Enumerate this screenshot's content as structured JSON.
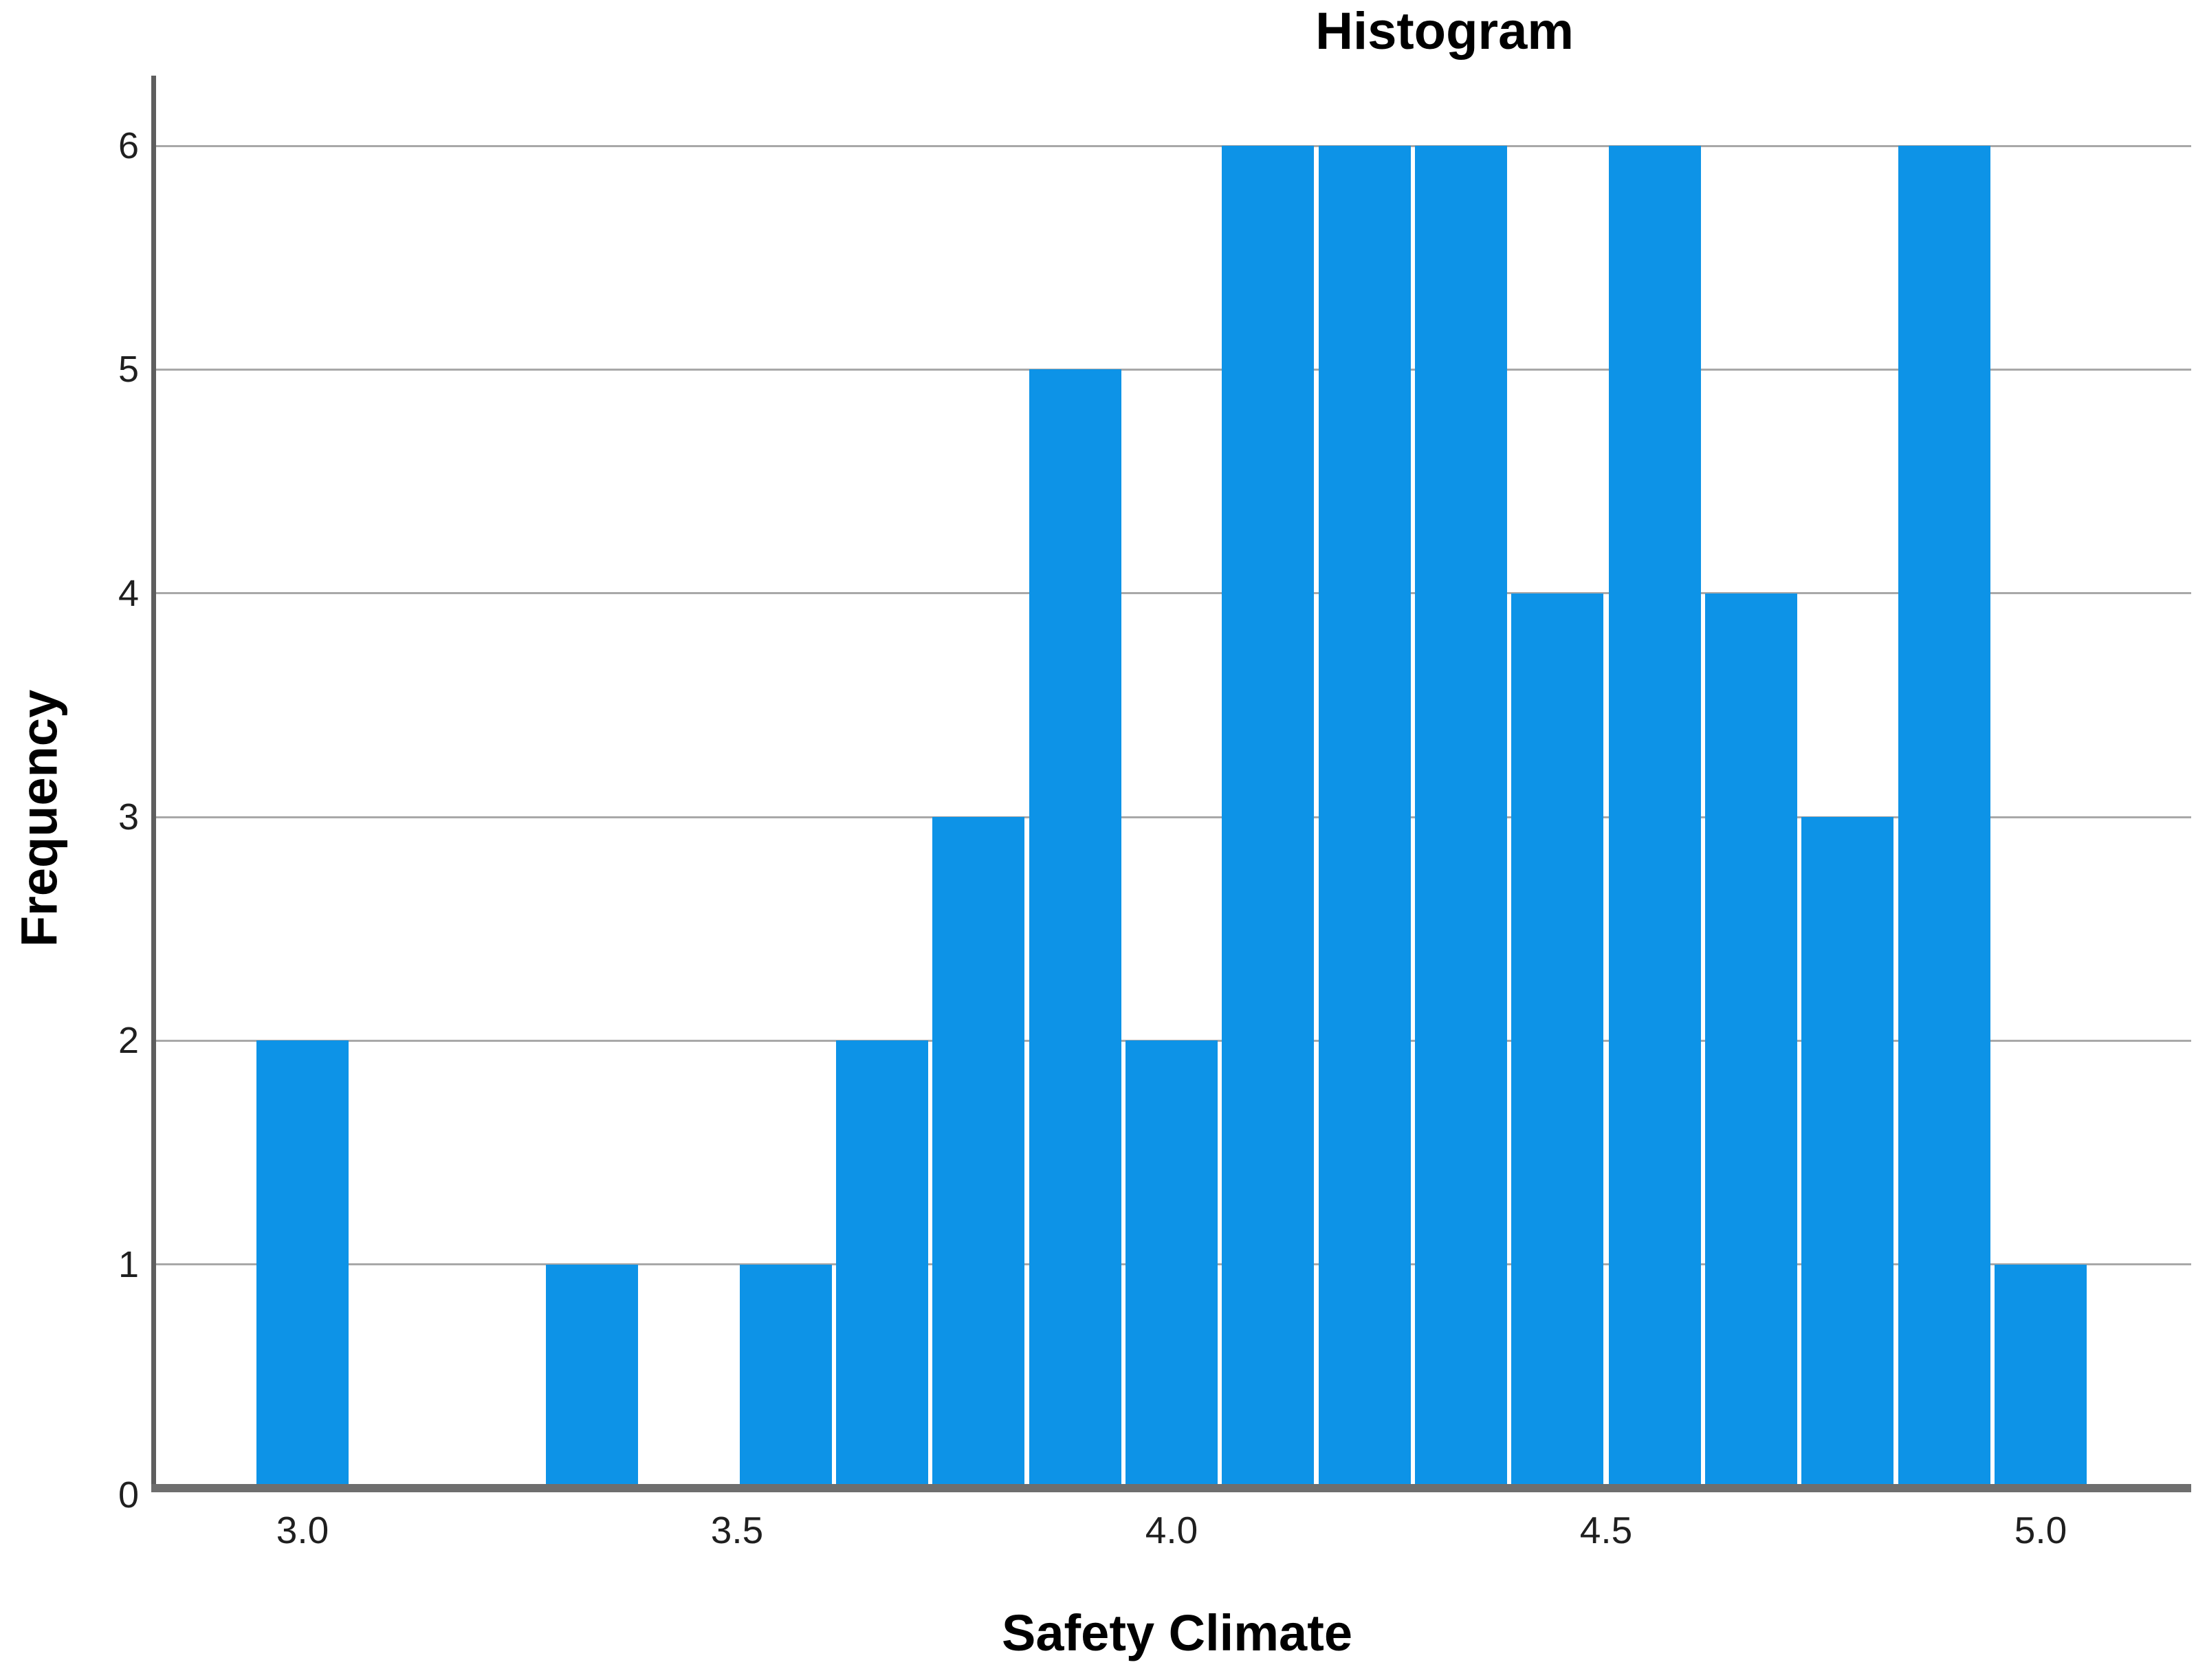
{
  "chart_data": {
    "type": "bar",
    "subtype": "histogram",
    "title": "Histogram",
    "xlabel": "Safety Climate",
    "ylabel": "Frequency",
    "x_ticks": [
      {
        "label": "3.0",
        "value": 3.0
      },
      {
        "label": "3.5",
        "value": 3.5
      },
      {
        "label": "4.0",
        "value": 4.0
      },
      {
        "label": "4.5",
        "value": 4.5
      },
      {
        "label": "5.0",
        "value": 5.0
      }
    ],
    "y_ticks": [
      {
        "label": "0",
        "value": 0
      },
      {
        "label": "1",
        "value": 1
      },
      {
        "label": "2",
        "value": 2
      },
      {
        "label": "3",
        "value": 3
      },
      {
        "label": "4",
        "value": 4
      },
      {
        "label": "5",
        "value": 5
      },
      {
        "label": "6",
        "value": 6
      }
    ],
    "xlim": [
      2.83,
      5.17
    ],
    "ylim": [
      0,
      6.3
    ],
    "grid": "horizontal",
    "legend": "none",
    "bin_width": 0.111,
    "bin_centers": [
      3.0,
      3.111,
      3.222,
      3.333,
      3.444,
      3.556,
      3.667,
      3.778,
      3.889,
      4.0,
      4.111,
      4.222,
      4.333,
      4.444,
      4.556,
      4.667,
      4.778,
      4.889,
      5.0
    ],
    "frequencies": [
      2,
      0,
      0,
      1,
      0,
      1,
      2,
      3,
      5,
      2,
      6,
      6,
      6,
      4,
      6,
      4,
      3,
      6,
      1
    ],
    "n_total": 58,
    "colors": {
      "bar": "#0d93e7",
      "gridline": "#a8a8a8",
      "y_axis_line": "#5e5e5e",
      "x_axis_line": "#6e6e6e",
      "tick_text": "#1f1f1f",
      "title_text": "#000000",
      "background": "#ffffff"
    }
  }
}
